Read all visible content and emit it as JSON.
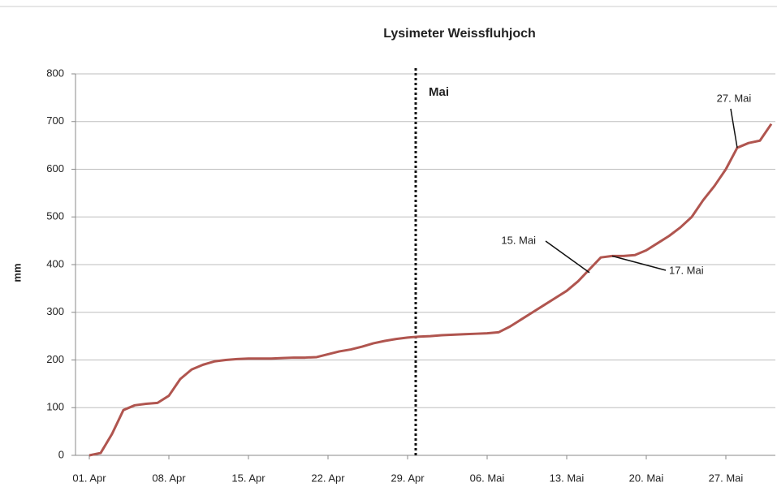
{
  "chart_data": {
    "type": "line",
    "title": "Lysimeter Weissfluhjoch",
    "y_label": "mm",
    "categories": [
      "01. Apr",
      null,
      null,
      null,
      null,
      null,
      null,
      "08. Apr",
      null,
      null,
      null,
      null,
      null,
      null,
      "15. Apr",
      null,
      null,
      null,
      null,
      null,
      null,
      "22. Apr",
      null,
      null,
      null,
      null,
      null,
      null,
      "29. Apr",
      null,
      null,
      null,
      null,
      null,
      null,
      "06. Mai",
      null,
      null,
      null,
      null,
      null,
      null,
      "13. Mai",
      null,
      null,
      null,
      null,
      null,
      null,
      "20. Mai",
      null,
      null,
      null,
      null,
      null,
      null,
      "27. Mai",
      null,
      null,
      null,
      null
    ],
    "series": [
      {
        "name": "Lysimeter",
        "color": "#b0554f",
        "values": [
          0,
          5,
          45,
          95,
          105,
          108,
          110,
          125,
          160,
          180,
          190,
          197,
          200,
          202,
          203,
          203,
          203,
          204,
          205,
          205,
          206,
          212,
          218,
          222,
          228,
          235,
          240,
          244,
          247,
          249,
          250,
          252,
          253,
          254,
          255,
          256,
          258,
          270,
          285,
          300,
          315,
          330,
          345,
          365,
          390,
          415,
          418,
          418,
          420,
          430,
          445,
          460,
          478,
          500,
          535,
          565,
          600,
          645,
          655,
          660,
          695
        ]
      }
    ],
    "ylim": [
      0,
      800
    ],
    "yticks": [
      0,
      100,
      200,
      300,
      400,
      500,
      600,
      700,
      800
    ],
    "grid": true,
    "annotations": [
      "Mai",
      "15. Mai",
      "17. Mai",
      "27. Mai"
    ]
  }
}
